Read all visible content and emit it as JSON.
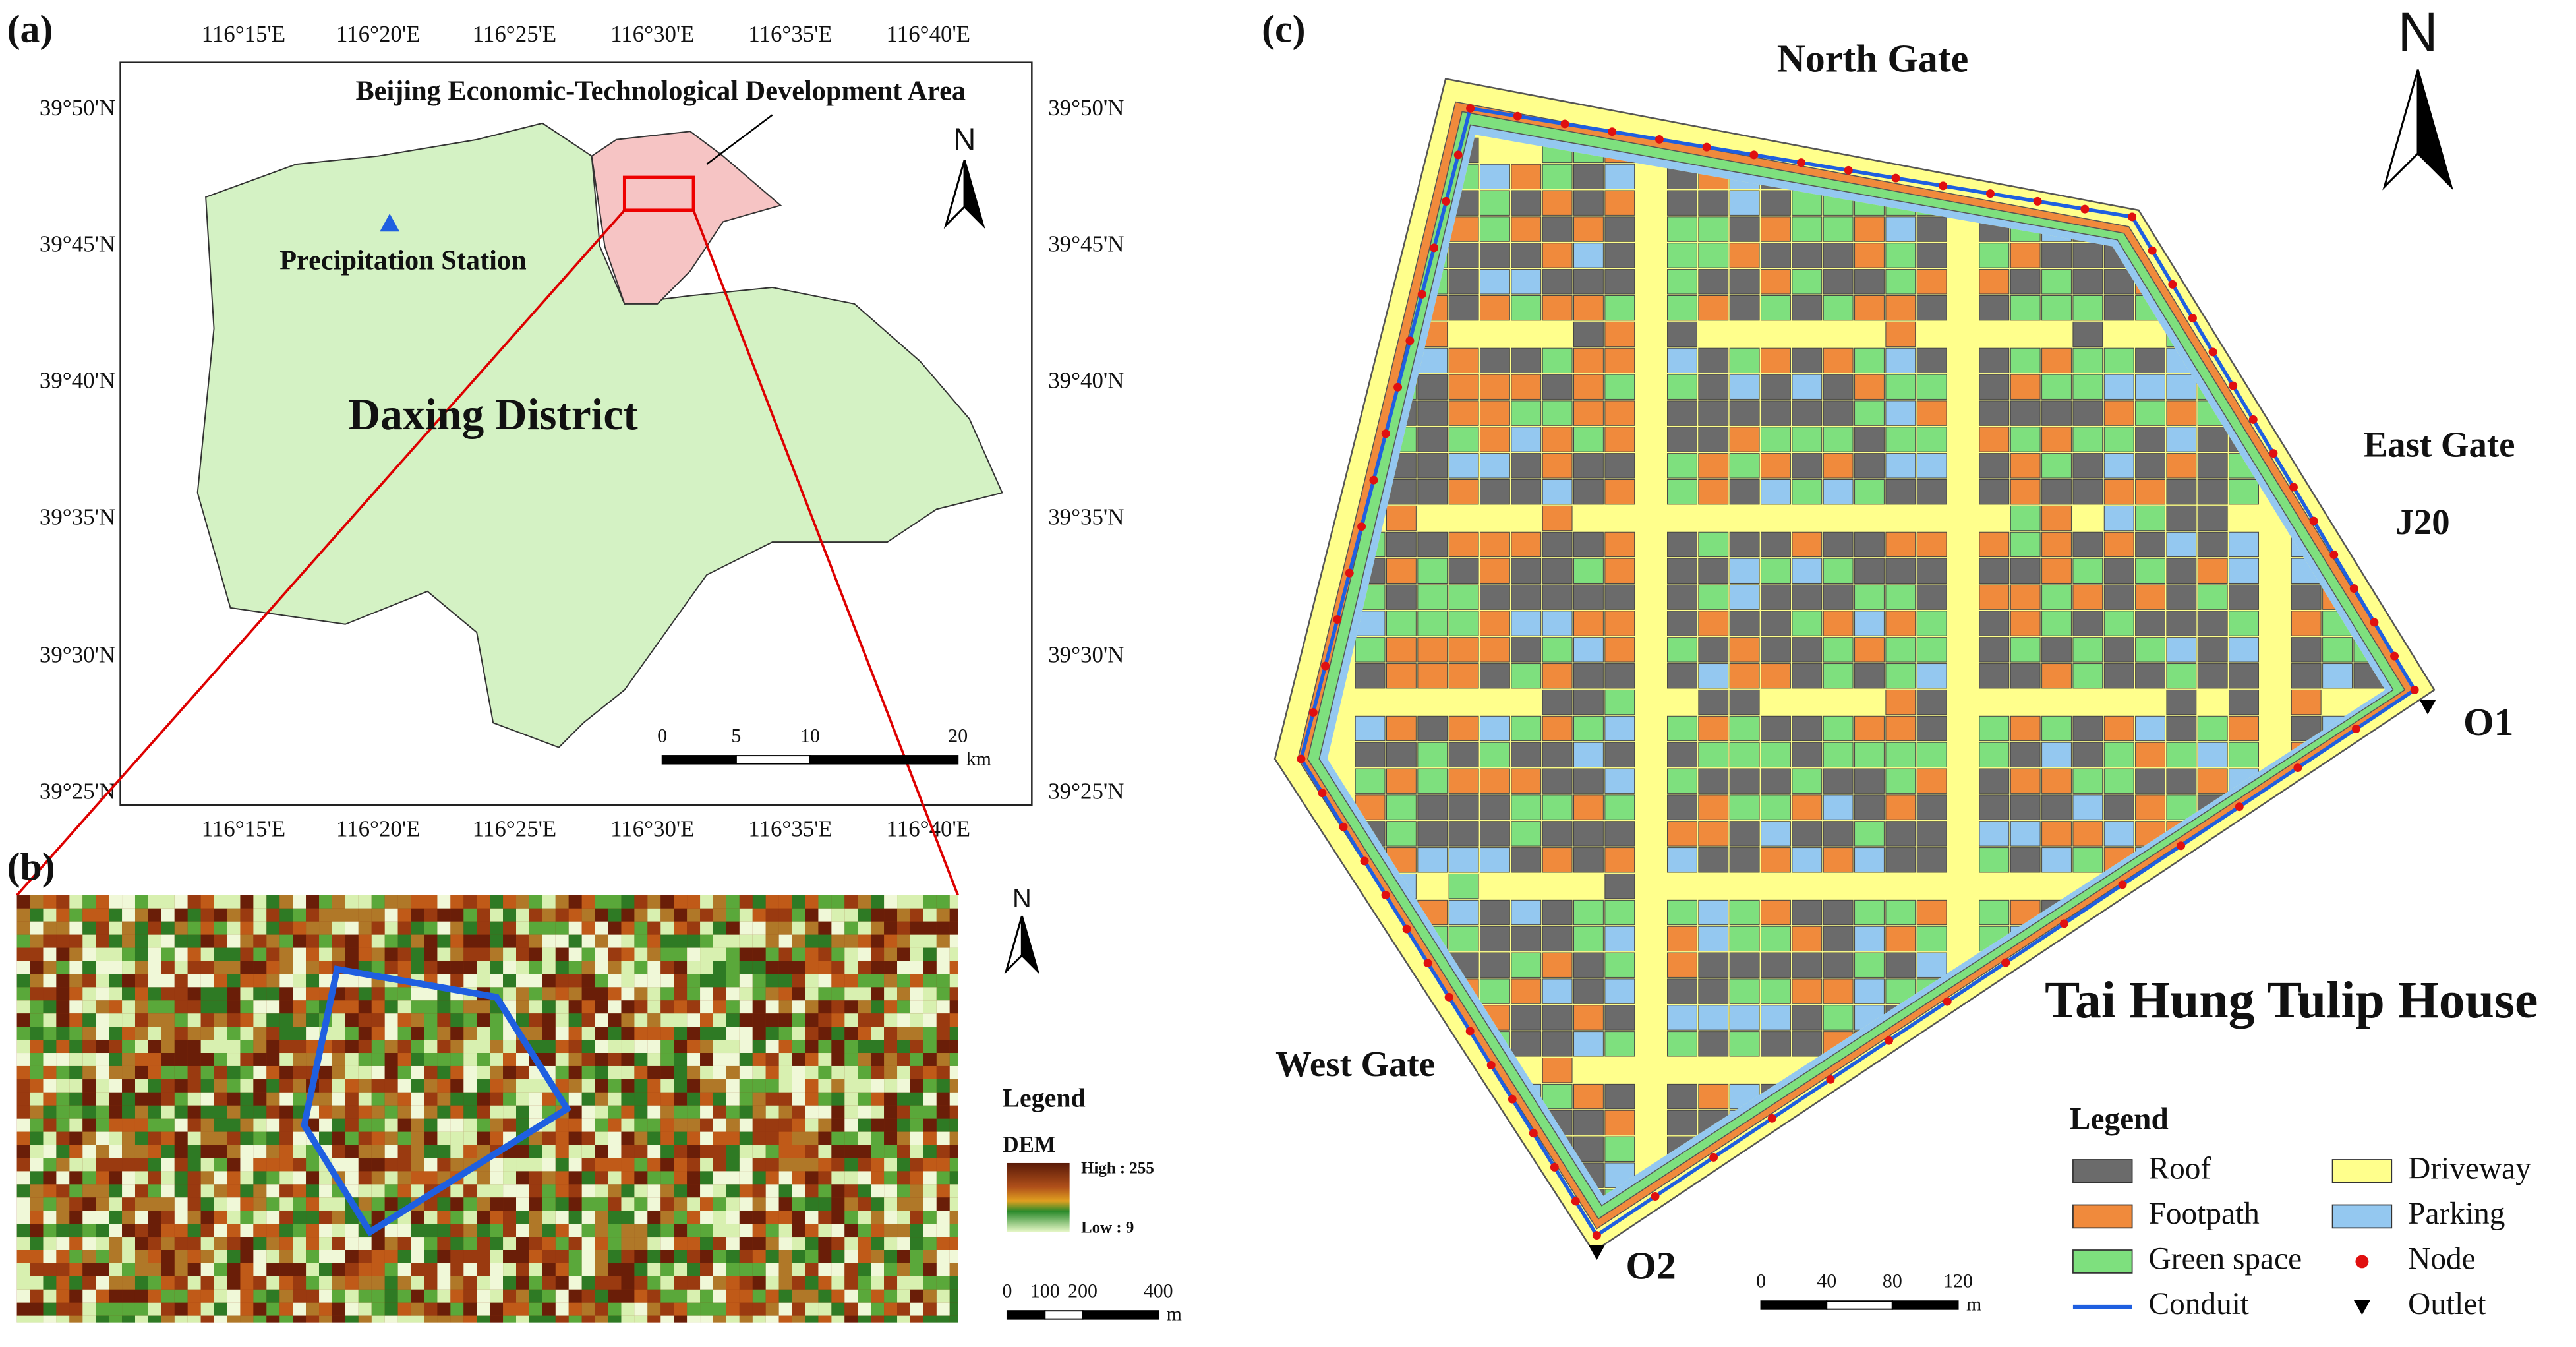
{
  "panel_a": {
    "label": "(a)",
    "lon_labels": [
      "116°15'E",
      "116°20'E",
      "116°25'E",
      "116°30'E",
      "116°35'E",
      "116°40'E"
    ],
    "lat_labels": [
      "39°50'N",
      "39°45'N",
      "39°40'N",
      "39°35'N",
      "39°30'N",
      "39°25'N"
    ],
    "area_label": "Beijing Economic-Technological Development Area",
    "station_label": "Precipitation Station",
    "district_label": "Daxing District",
    "north": "N",
    "scale": {
      "ticks": [
        0,
        5,
        10,
        20
      ],
      "unit": "km"
    }
  },
  "panel_b": {
    "label": "(b)",
    "north": "N",
    "legend_title": "Legend",
    "layer": "DEM",
    "high": "High : 255",
    "low": "Low : 9",
    "scale": {
      "ticks": [
        0,
        100,
        200,
        400
      ],
      "unit": "m"
    }
  },
  "panel_c": {
    "label": "(c)",
    "site_name": "Tai Hung Tulip House",
    "annotations": [
      "North Gate",
      "East Gate",
      "J20",
      "O1",
      "O2",
      "West Gate"
    ],
    "north": "N",
    "legend_title": "Legend",
    "legend": [
      {
        "name": "Roof",
        "color": "#6b6b6b"
      },
      {
        "name": "Footpath",
        "color": "#f08a3c"
      },
      {
        "name": "Green space",
        "color": "#7ee07e"
      },
      {
        "name": "Conduit",
        "color": "#1f5fe0"
      },
      {
        "name": "Driveway",
        "color": "#ffff8c"
      },
      {
        "name": "Parking",
        "color": "#94c8f0"
      },
      {
        "name": "Node",
        "color": "#e01010"
      },
      {
        "name": "Outlet",
        "color": "#000000"
      }
    ],
    "scale": {
      "ticks": [
        0,
        40,
        80,
        120
      ],
      "unit": "m"
    }
  }
}
